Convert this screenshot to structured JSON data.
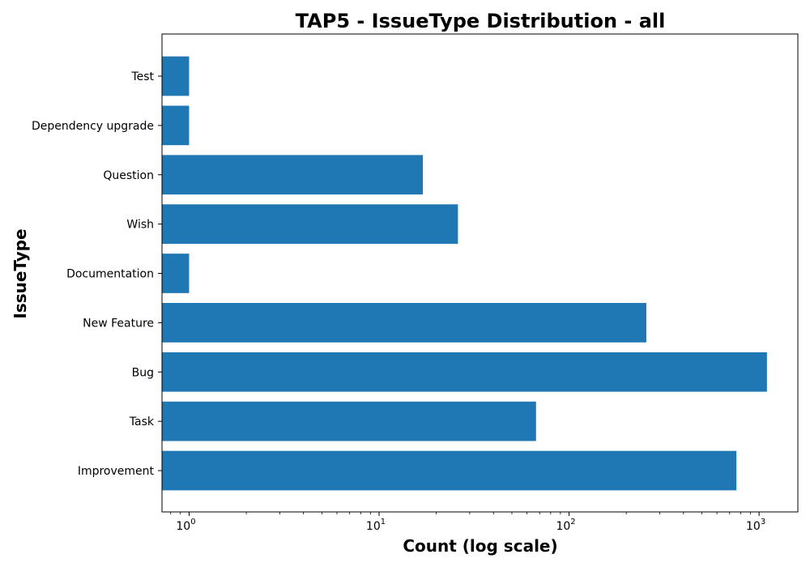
{
  "chart_data": {
    "type": "bar",
    "orientation": "horizontal",
    "title": "TAP5 - IssueType Distribution - all",
    "xlabel": "Count (log scale)",
    "ylabel": "IssueType",
    "xscale": "log",
    "xlim": [
      0.72,
      1600
    ],
    "x_ticks": [
      {
        "base": "10",
        "exp": "0",
        "value": 1
      },
      {
        "base": "10",
        "exp": "1",
        "value": 10
      },
      {
        "base": "10",
        "exp": "2",
        "value": 100
      },
      {
        "base": "10",
        "exp": "3",
        "value": 1000
      }
    ],
    "categories": [
      "Improvement",
      "Task",
      "Bug",
      "New Feature",
      "Documentation",
      "Wish",
      "Question",
      "Dependency upgrade",
      "Test"
    ],
    "values": [
      760,
      67,
      1100,
      255,
      1,
      26,
      17,
      1,
      1
    ],
    "bar_color": "#1f77b4",
    "grid": false,
    "legend": "none"
  }
}
